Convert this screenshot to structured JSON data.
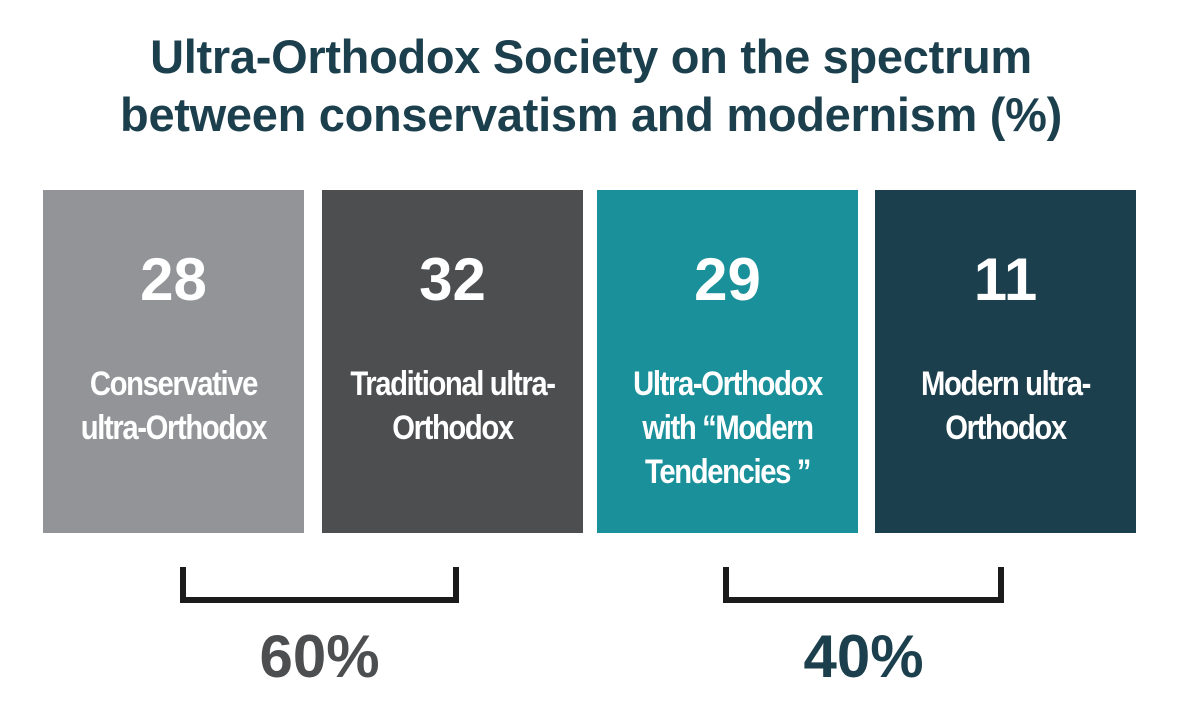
{
  "chart_data": {
    "type": "bar",
    "title": "Ultra-Orthodox Society on the spectrum between conservatism and modernism (%)",
    "title_lines": [
      "Ultra-Orthodox Society on the spectrum",
      "between conservatism and modernism (%)"
    ],
    "categories": [
      [
        "Conservative",
        "ultra-Orthodox"
      ],
      [
        "Traditional ultra-",
        "Orthodox"
      ],
      [
        "Ultra-Orthodox",
        "with “Modern",
        "Tendencies ”"
      ],
      [
        "Modern ultra-",
        "Orthodox"
      ]
    ],
    "values": [
      28,
      32,
      29,
      11
    ],
    "colors": [
      "#929497",
      "#4d4e50",
      "#19909a",
      "#1c3f4d"
    ],
    "groups": [
      {
        "total": "60%",
        "members": [
          0,
          1
        ],
        "color": "#4d4e50"
      },
      {
        "total": "40%",
        "members": [
          2,
          3
        ],
        "color": "#1c3f4d"
      }
    ],
    "legend": "none",
    "grid": false
  }
}
